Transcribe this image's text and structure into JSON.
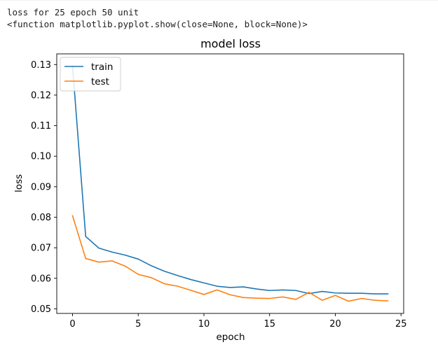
{
  "notebook": {
    "output_lines": [
      "loss for 25 epoch 50 unit",
      "<function matplotlib.pyplot.show(close=None, block=None)>"
    ]
  },
  "chart_data": {
    "type": "line",
    "title": "model loss",
    "xlabel": "epoch",
    "ylabel": "loss",
    "xlim": [
      -1.2,
      25.2
    ],
    "ylim": [
      0.0485,
      0.1335
    ],
    "xticks": [
      0,
      5,
      10,
      15,
      20,
      25
    ],
    "xtick_labels": [
      "0",
      "5",
      "10",
      "15",
      "20",
      "25"
    ],
    "yticks": [
      0.05,
      0.06,
      0.07,
      0.08,
      0.09,
      0.1,
      0.11,
      0.12,
      0.13
    ],
    "ytick_labels": [
      "0.05",
      "0.06",
      "0.07",
      "0.08",
      "0.09",
      "0.10",
      "0.11",
      "0.12",
      "0.13"
    ],
    "legend_position": "top-left",
    "grid": false,
    "x": [
      0,
      1,
      2,
      3,
      4,
      5,
      6,
      7,
      8,
      9,
      10,
      11,
      12,
      13,
      14,
      15,
      16,
      17,
      18,
      19,
      20,
      21,
      22,
      23,
      24
    ],
    "series": [
      {
        "name": "train",
        "color": "#1f77b4",
        "values": [
          0.1295,
          0.0737,
          0.0699,
          0.0686,
          0.0676,
          0.0663,
          0.0641,
          0.0623,
          0.0609,
          0.0596,
          0.0585,
          0.0574,
          0.057,
          0.0572,
          0.0565,
          0.056,
          0.0562,
          0.056,
          0.055,
          0.0557,
          0.0552,
          0.0551,
          0.0551,
          0.0549,
          0.0549
        ]
      },
      {
        "name": "test",
        "color": "#ff7f0e",
        "values": [
          0.0805,
          0.0665,
          0.0653,
          0.0657,
          0.064,
          0.0613,
          0.0602,
          0.0582,
          0.0574,
          0.0561,
          0.0547,
          0.0562,
          0.0546,
          0.0537,
          0.0535,
          0.0534,
          0.0539,
          0.0531,
          0.0554,
          0.0528,
          0.0544,
          0.0525,
          0.0534,
          0.0528,
          0.0526
        ]
      }
    ]
  }
}
